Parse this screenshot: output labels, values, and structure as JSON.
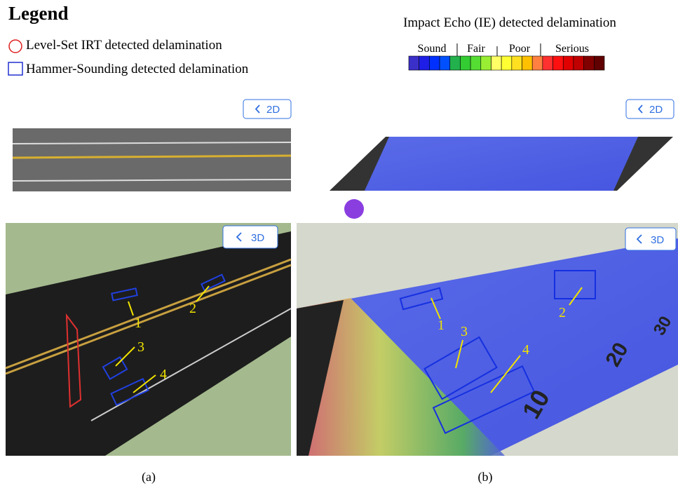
{
  "legend": {
    "title": "Legend",
    "items": [
      "Level-Set IRT detected delamination",
      "Hammer-Sounding detected delamination"
    ]
  },
  "colorbar": {
    "title": "Impact Echo (IE) detected delamination",
    "labels": [
      "Sound",
      "Fair",
      "Poor",
      "Serious"
    ],
    "colors": [
      "#3b2fc9",
      "#1e1ee6",
      "#0030ff",
      "#0050ff",
      "#22b14c",
      "#33cc33",
      "#55dd33",
      "#99ee33",
      "#ffff66",
      "#ffff33",
      "#ffe020",
      "#ffc000",
      "#ff8040",
      "#ff3030",
      "#ff1010",
      "#e00000",
      "#c00000",
      "#800000",
      "#600000"
    ]
  },
  "panels": [
    {
      "caption": "(a)",
      "buttons": [
        "2D",
        "3D"
      ],
      "annotations": [
        "1",
        "2",
        "3",
        "4"
      ]
    },
    {
      "caption": "(b)",
      "buttons": [
        "2D",
        "3D"
      ],
      "annotations": [
        "1",
        "2",
        "3",
        "4"
      ],
      "ruler": [
        "10",
        "20",
        "30"
      ]
    }
  ]
}
